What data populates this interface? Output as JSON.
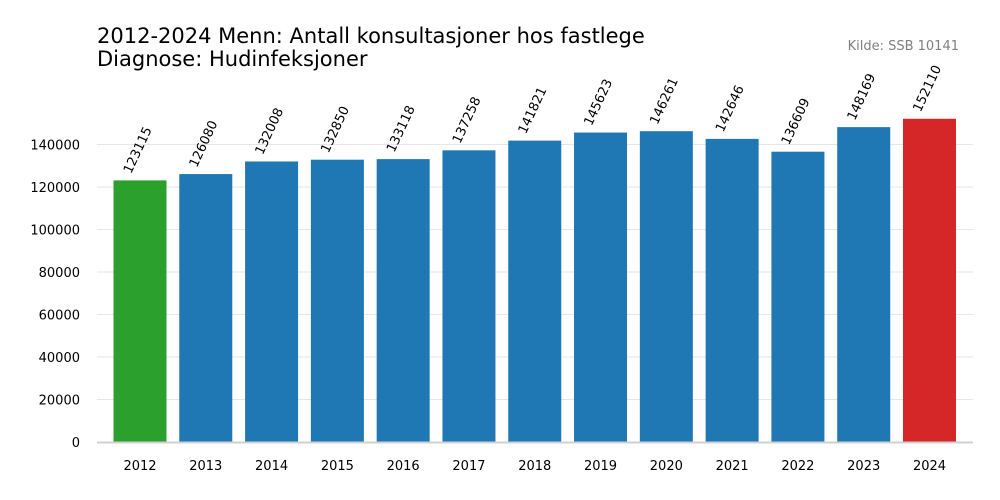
{
  "chart_data": {
    "type": "bar",
    "title": "2012-2024 Menn: Antall konsultasjoner hos fastlege",
    "subtitle": "Diagnose: Hudinfeksjoner",
    "source": "Kilde: SSB 10141",
    "categories": [
      "2012",
      "2013",
      "2014",
      "2015",
      "2016",
      "2017",
      "2018",
      "2019",
      "2020",
      "2021",
      "2022",
      "2023",
      "2024"
    ],
    "values": [
      123115,
      126080,
      132008,
      132850,
      133118,
      137258,
      141821,
      145623,
      146261,
      142646,
      136609,
      148169,
      152110
    ],
    "value_labels": [
      "123115",
      "126080",
      "132008",
      "132850",
      "133118",
      "137258",
      "141821",
      "145623",
      "146261",
      "142646",
      "136609",
      "148169",
      "152110"
    ],
    "bar_colors": [
      "#2ca02c",
      "#1f77b4",
      "#1f77b4",
      "#1f77b4",
      "#1f77b4",
      "#1f77b4",
      "#1f77b4",
      "#1f77b4",
      "#1f77b4",
      "#1f77b4",
      "#1f77b4",
      "#1f77b4",
      "#d62728"
    ],
    "xlabel": "",
    "ylabel": "",
    "ylim": [
      0,
      160000
    ],
    "yticks": [
      0,
      20000,
      40000,
      60000,
      80000,
      100000,
      120000,
      140000
    ],
    "ytick_labels": [
      "0",
      "20000",
      "40000",
      "60000",
      "80000",
      "100000",
      "120000",
      "140000"
    ],
    "grid": true,
    "grid_axis": "y",
    "grid_color": "#e6e6e6",
    "axis_color": "#d0d0d0",
    "legend": "none"
  }
}
